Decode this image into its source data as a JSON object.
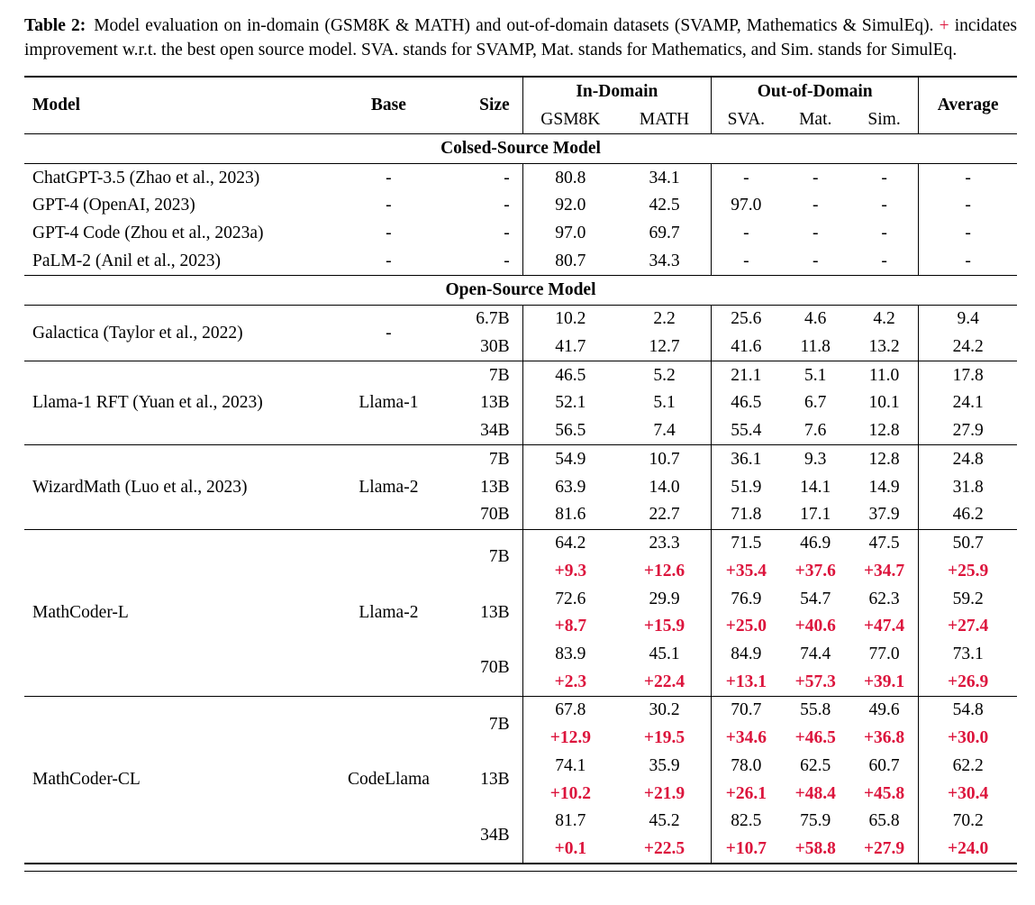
{
  "colors": {
    "accent_red": "#dc143c",
    "text": "#000000",
    "background": "#ffffff",
    "rule": "#000000"
  },
  "caption": {
    "label": "Table 2:",
    "text_before_plus": "Model evaluation on in-domain (GSM8K & MATH) and out-of-domain datasets (SVAMP, Mathematics & SimulEq).",
    "plus_sign": "+",
    "text_after_plus": "incidates improvement w.r.t. the best open source model. SVA. stands for SVAMP, Mat. stands for Mathematics, and Sim. stands for SimulEq."
  },
  "table": {
    "header": {
      "model": "Model",
      "base": "Base",
      "size": "Size",
      "in_domain": "In-Domain",
      "out_of_domain": "Out-of-Domain",
      "gsm8k": "GSM8K",
      "math": "MATH",
      "sva": "SVA.",
      "mat": "Mat.",
      "sim": "Sim.",
      "average": "Average"
    },
    "sections": [
      {
        "title": "Colsed-Source Model",
        "ruled_groups": false,
        "groups": [
          {
            "model": "ChatGPT-3.5 (Zhao et al., 2023)",
            "base": "-",
            "rows": [
              {
                "size": "-",
                "values": [
                  "80.8",
                  "34.1",
                  "-",
                  "-",
                  "-",
                  "-"
                ]
              }
            ]
          },
          {
            "model": "GPT-4 (OpenAI, 2023)",
            "base": "-",
            "rows": [
              {
                "size": "-",
                "values": [
                  "92.0",
                  "42.5",
                  "97.0",
                  "-",
                  "-",
                  "-"
                ]
              }
            ]
          },
          {
            "model": "GPT-4 Code (Zhou et al., 2023a)",
            "base": "-",
            "rows": [
              {
                "size": "-",
                "values": [
                  "97.0",
                  "69.7",
                  "-",
                  "-",
                  "-",
                  "-"
                ]
              }
            ]
          },
          {
            "model": "PaLM-2 (Anil et al., 2023)",
            "base": "-",
            "rows": [
              {
                "size": "-",
                "values": [
                  "80.7",
                  "34.3",
                  "-",
                  "-",
                  "-",
                  "-"
                ]
              }
            ]
          }
        ]
      },
      {
        "title": "Open-Source Model",
        "ruled_groups": true,
        "groups": [
          {
            "model": "Galactica (Taylor et al., 2022)",
            "base": "-",
            "rows": [
              {
                "size": "6.7B",
                "values": [
                  "10.2",
                  "2.2",
                  "25.6",
                  "4.6",
                  "4.2",
                  "9.4"
                ]
              },
              {
                "size": "30B",
                "values": [
                  "41.7",
                  "12.7",
                  "41.6",
                  "11.8",
                  "13.2",
                  "24.2"
                ]
              }
            ]
          },
          {
            "model": "Llama-1 RFT (Yuan et al., 2023)",
            "base": "Llama-1",
            "rows": [
              {
                "size": "7B",
                "values": [
                  "46.5",
                  "5.2",
                  "21.1",
                  "5.1",
                  "11.0",
                  "17.8"
                ]
              },
              {
                "size": "13B",
                "values": [
                  "52.1",
                  "5.1",
                  "46.5",
                  "6.7",
                  "10.1",
                  "24.1"
                ]
              },
              {
                "size": "34B",
                "values": [
                  "56.5",
                  "7.4",
                  "55.4",
                  "7.6",
                  "12.8",
                  "27.9"
                ]
              }
            ]
          },
          {
            "model": "WizardMath (Luo et al., 2023)",
            "base": "Llama-2",
            "rows": [
              {
                "size": "7B",
                "values": [
                  "54.9",
                  "10.7",
                  "36.1",
                  "9.3",
                  "12.8",
                  "24.8"
                ]
              },
              {
                "size": "13B",
                "values": [
                  "63.9",
                  "14.0",
                  "51.9",
                  "14.1",
                  "14.9",
                  "31.8"
                ]
              },
              {
                "size": "70B",
                "values": [
                  "81.6",
                  "22.7",
                  "71.8",
                  "17.1",
                  "37.9",
                  "46.2"
                ]
              }
            ]
          },
          {
            "model": "MathCoder-L",
            "base": "Llama-2",
            "rows": [
              {
                "size": "7B",
                "values": [
                  "64.2",
                  "23.3",
                  "71.5",
                  "46.9",
                  "47.5",
                  "50.7"
                ],
                "delta": [
                  "+9.3",
                  "+12.6",
                  "+35.4",
                  "+37.6",
                  "+34.7",
                  "+25.9"
                ]
              },
              {
                "size": "13B",
                "values": [
                  "72.6",
                  "29.9",
                  "76.9",
                  "54.7",
                  "62.3",
                  "59.2"
                ],
                "delta": [
                  "+8.7",
                  "+15.9",
                  "+25.0",
                  "+40.6",
                  "+47.4",
                  "+27.4"
                ]
              },
              {
                "size": "70B",
                "values": [
                  "83.9",
                  "45.1",
                  "84.9",
                  "74.4",
                  "77.0",
                  "73.1"
                ],
                "delta": [
                  "+2.3",
                  "+22.4",
                  "+13.1",
                  "+57.3",
                  "+39.1",
                  "+26.9"
                ]
              }
            ]
          },
          {
            "model": "MathCoder-CL",
            "base": "CodeLlama",
            "rows": [
              {
                "size": "7B",
                "values": [
                  "67.8",
                  "30.2",
                  "70.7",
                  "55.8",
                  "49.6",
                  "54.8"
                ],
                "delta": [
                  "+12.9",
                  "+19.5",
                  "+34.6",
                  "+46.5",
                  "+36.8",
                  "+30.0"
                ]
              },
              {
                "size": "13B",
                "values": [
                  "74.1",
                  "35.9",
                  "78.0",
                  "62.5",
                  "60.7",
                  "62.2"
                ],
                "delta": [
                  "+10.2",
                  "+21.9",
                  "+26.1",
                  "+48.4",
                  "+45.8",
                  "+30.4"
                ]
              },
              {
                "size": "34B",
                "values": [
                  "81.7",
                  "45.2",
                  "82.5",
                  "75.9",
                  "65.8",
                  "70.2"
                ],
                "delta": [
                  "+0.1",
                  "+22.5",
                  "+10.7",
                  "+58.8",
                  "+27.9",
                  "+24.0"
                ]
              }
            ]
          }
        ]
      }
    ]
  }
}
